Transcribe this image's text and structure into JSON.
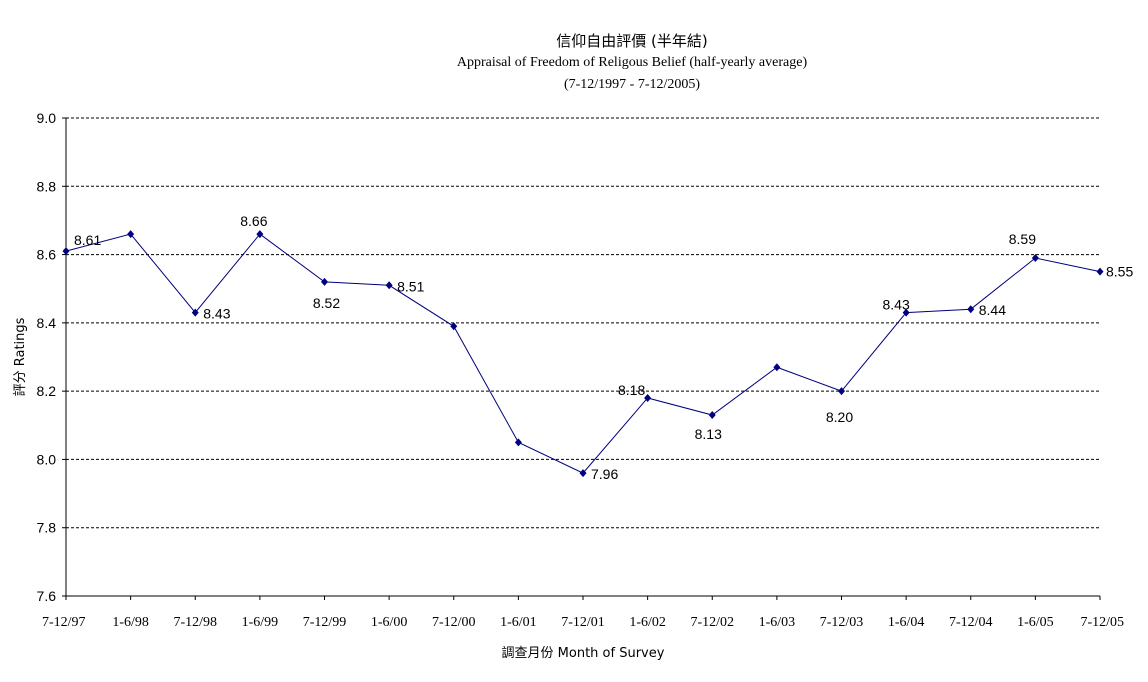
{
  "chart_data": {
    "type": "line",
    "title": "信仰自由評價 (半年結)",
    "subtitle": "Appraisal of Freedom of Religous Belief (half-yearly average)",
    "subtitle2": "(7-12/1997 - 7-12/2005)",
    "xlabel": "調查月份 Month of Survey",
    "ylabel": "評分 Ratings",
    "ylim": [
      7.6,
      9.0
    ],
    "yticks": [
      "9.0",
      "8.8",
      "8.6",
      "8.4",
      "8.2",
      "8.0",
      "7.8",
      "7.6"
    ],
    "grid": "horizontal dashed",
    "categories": [
      "7-12/97",
      "1-6/98",
      "7-12/98",
      "1-6/99",
      "7-12/99",
      "1-6/00",
      "7-12/00",
      "1-6/01",
      "7-12/01",
      "1-6/02",
      "7-12/02",
      "1-6/03",
      "7-12/03",
      "1-6/04",
      "7-12/04",
      "1-6/05",
      "7-12/05"
    ],
    "values": [
      8.61,
      8.66,
      8.43,
      8.66,
      8.52,
      8.51,
      8.39,
      8.05,
      7.96,
      8.18,
      8.13,
      8.27,
      8.2,
      8.43,
      8.44,
      8.59,
      8.55
    ],
    "data_labels": [
      "8.61",
      "",
      "8.43",
      "8.66",
      "8.52",
      "8.51",
      "",
      "",
      "7.96",
      "8.18",
      "8.13",
      "",
      "8.20",
      "8.43",
      "8.44",
      "8.59",
      "8.55"
    ],
    "line_color": "#000080"
  }
}
